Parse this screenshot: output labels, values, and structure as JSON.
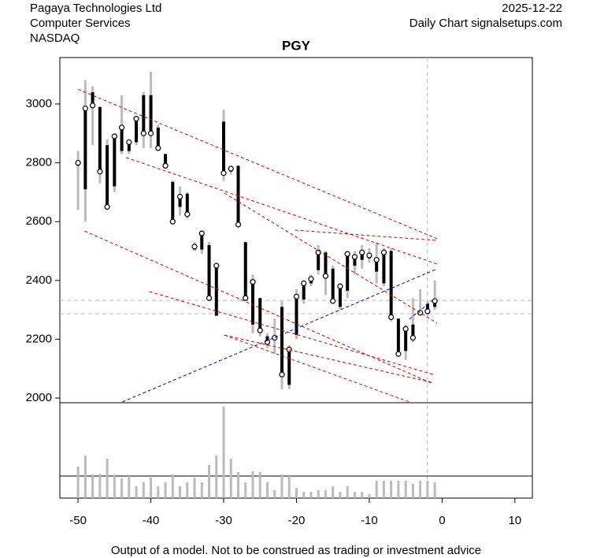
{
  "chart_data": {
    "type": "candlestick",
    "title": "PGY",
    "company": "Pagaya Technologies Ltd",
    "sector": "Computer Services",
    "exchange": "NASDAQ",
    "date": "2025-12-22",
    "source": "Daily Chart signalsetups.com",
    "footer": "Output of a model. Not to be construed as trading or investment advice",
    "x": [
      -50,
      -49,
      -48,
      -47,
      -46,
      -45,
      -44,
      -43,
      -42,
      -41,
      -40,
      -39,
      -38,
      -37,
      -36,
      -35,
      -34,
      -33,
      -32,
      -31,
      -30,
      -29,
      -28,
      -27,
      -26,
      -25,
      -24,
      -23,
      -22,
      -21,
      -20,
      -19,
      -18,
      -17,
      -16,
      -15,
      -14,
      -13,
      -12,
      -11,
      -10,
      -9,
      -8,
      -7,
      -6,
      -5,
      -4,
      -3,
      -2,
      -1
    ],
    "open": [
      2790,
      2710,
      3040,
      2990,
      2860,
      2720,
      2840,
      2840,
      2870,
      3030,
      3030,
      2920,
      2830,
      2735,
      2650,
      2695,
      2505,
      2505,
      2520,
      2280,
      2940,
      2770,
      2790,
      2530,
      2250,
      2340,
      2210,
      2200,
      2310,
      2045,
      2215,
      2335,
      2390,
      2435,
      2495,
      2440,
      2310,
      2365,
      2450,
      2470,
      2475,
      2430,
      2390,
      2500,
      2270,
      2160,
      2250,
      2295,
      2320,
      2310
    ],
    "high": [
      2840,
      3080,
      3060,
      2990,
      2880,
      2900,
      3030,
      2880,
      2960,
      3040,
      3110,
      2930,
      2830,
      2740,
      2720,
      2700,
      2530,
      2570,
      2530,
      2460,
      2980,
      2790,
      2790,
      2530,
      2420,
      2340,
      2220,
      2270,
      2330,
      2180,
      2370,
      2400,
      2420,
      2520,
      2500,
      2450,
      2390,
      2500,
      2500,
      2520,
      2510,
      2530,
      2510,
      2510,
      2270,
      2250,
      2340,
      2370,
      2330,
      2400
    ],
    "low": [
      2640,
      2600,
      2860,
      2730,
      2640,
      2700,
      2830,
      2830,
      2860,
      2850,
      2850,
      2840,
      2780,
      2590,
      2620,
      2610,
      2500,
      2490,
      2330,
      2280,
      2740,
      2760,
      2580,
      2330,
      2220,
      2210,
      2170,
      2150,
      2030,
      2030,
      2200,
      2320,
      2380,
      2420,
      2350,
      2320,
      2300,
      2340,
      2420,
      2440,
      2460,
      2390,
      2380,
      2260,
      2140,
      2130,
      2190,
      2280,
      2280,
      2300
    ],
    "close": [
      2800,
      2985,
      2995,
      2770,
      2650,
      2890,
      2920,
      2870,
      2950,
      2900,
      2900,
      2850,
      2790,
      2600,
      2685,
      2625,
      2515,
      2560,
      2340,
      2450,
      2765,
      2780,
      2590,
      2340,
      2395,
      2230,
      2190,
      2205,
      2080,
      2165,
      2345,
      2390,
      2405,
      2495,
      2415,
      2330,
      2380,
      2490,
      2480,
      2495,
      2485,
      2470,
      2495,
      2275,
      2150,
      2235,
      2205,
      2290,
      2295,
      2330
    ],
    "volume": [
      40,
      54,
      30,
      31,
      50,
      30,
      25,
      28,
      15,
      20,
      26,
      15,
      20,
      30,
      15,
      20,
      26,
      20,
      42,
      54,
      116,
      50,
      33,
      20,
      34,
      33,
      20,
      10,
      30,
      28,
      13,
      8,
      8,
      10,
      10,
      15,
      8,
      15,
      8,
      8,
      5,
      22,
      22,
      22,
      22,
      22,
      18,
      22,
      22,
      20
    ],
    "volume_ylim": [
      0,
      121
    ],
    "volume_reference": 28,
    "xlim": [
      -52.5,
      12.4
    ],
    "ylim": [
      1984,
      3158
    ],
    "xticks": [
      -50,
      -40,
      -30,
      -20,
      -10,
      0,
      10
    ],
    "yticks": [
      2000,
      2200,
      2400,
      2600,
      2800,
      3000
    ],
    "red_lines": [
      [
        -50,
        3050,
        -0.7,
        2542
      ],
      [
        -49.1,
        2568,
        -1.2,
        2048
      ],
      [
        -40.2,
        2362,
        -1.2,
        2080
      ],
      [
        -29.9,
        2214,
        -1.2,
        2052
      ],
      [
        -43.4,
        2818,
        -0.7,
        2456
      ],
      [
        -29.9,
        2697,
        -0.7,
        2255
      ],
      [
        -20.2,
        2571,
        -0.7,
        2536
      ],
      [
        -29.9,
        2214,
        -4.5,
        1987
      ]
    ],
    "blue_lines": [
      [
        -43.9,
        1987,
        -0.9,
        2437
      ],
      [
        -4.5,
        2268,
        -1.2,
        2335
      ]
    ],
    "hlines": [
      2332,
      2287
    ],
    "vline": -2
  }
}
